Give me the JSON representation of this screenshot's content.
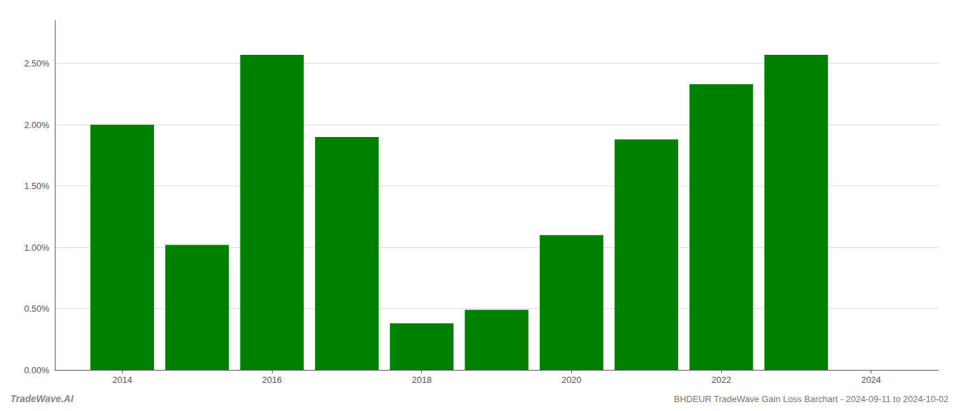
{
  "chart_data": {
    "type": "bar",
    "title": "BHDEUR TradeWave Gain Loss Barchart - 2024-09-11 to 2024-10-02",
    "annotations": [
      "TradeWave.AI"
    ],
    "x": [
      2014,
      2015,
      2016,
      2017,
      2018,
      2019,
      2020,
      2021,
      2022,
      2023
    ],
    "values": [
      0.02,
      0.0102,
      0.0257,
      0.019,
      0.0038,
      0.0049,
      0.011,
      0.0188,
      0.0233,
      0.0257
    ],
    "color": "#008000",
    "xlim": [
      2013.1,
      2024.9
    ],
    "xticks": [
      2014,
      2016,
      2018,
      2020,
      2022,
      2024
    ],
    "ylim": [
      0.0,
      0.0285
    ],
    "yticks": [
      {
        "value": 0.0,
        "label": "0.00%"
      },
      {
        "value": 0.005,
        "label": "0.50%"
      },
      {
        "value": 0.01,
        "label": "1.00%"
      },
      {
        "value": 0.015,
        "label": "1.50%"
      },
      {
        "value": 0.02,
        "label": "2.00%"
      },
      {
        "value": 0.025,
        "label": "2.50%"
      }
    ],
    "grid": true
  }
}
